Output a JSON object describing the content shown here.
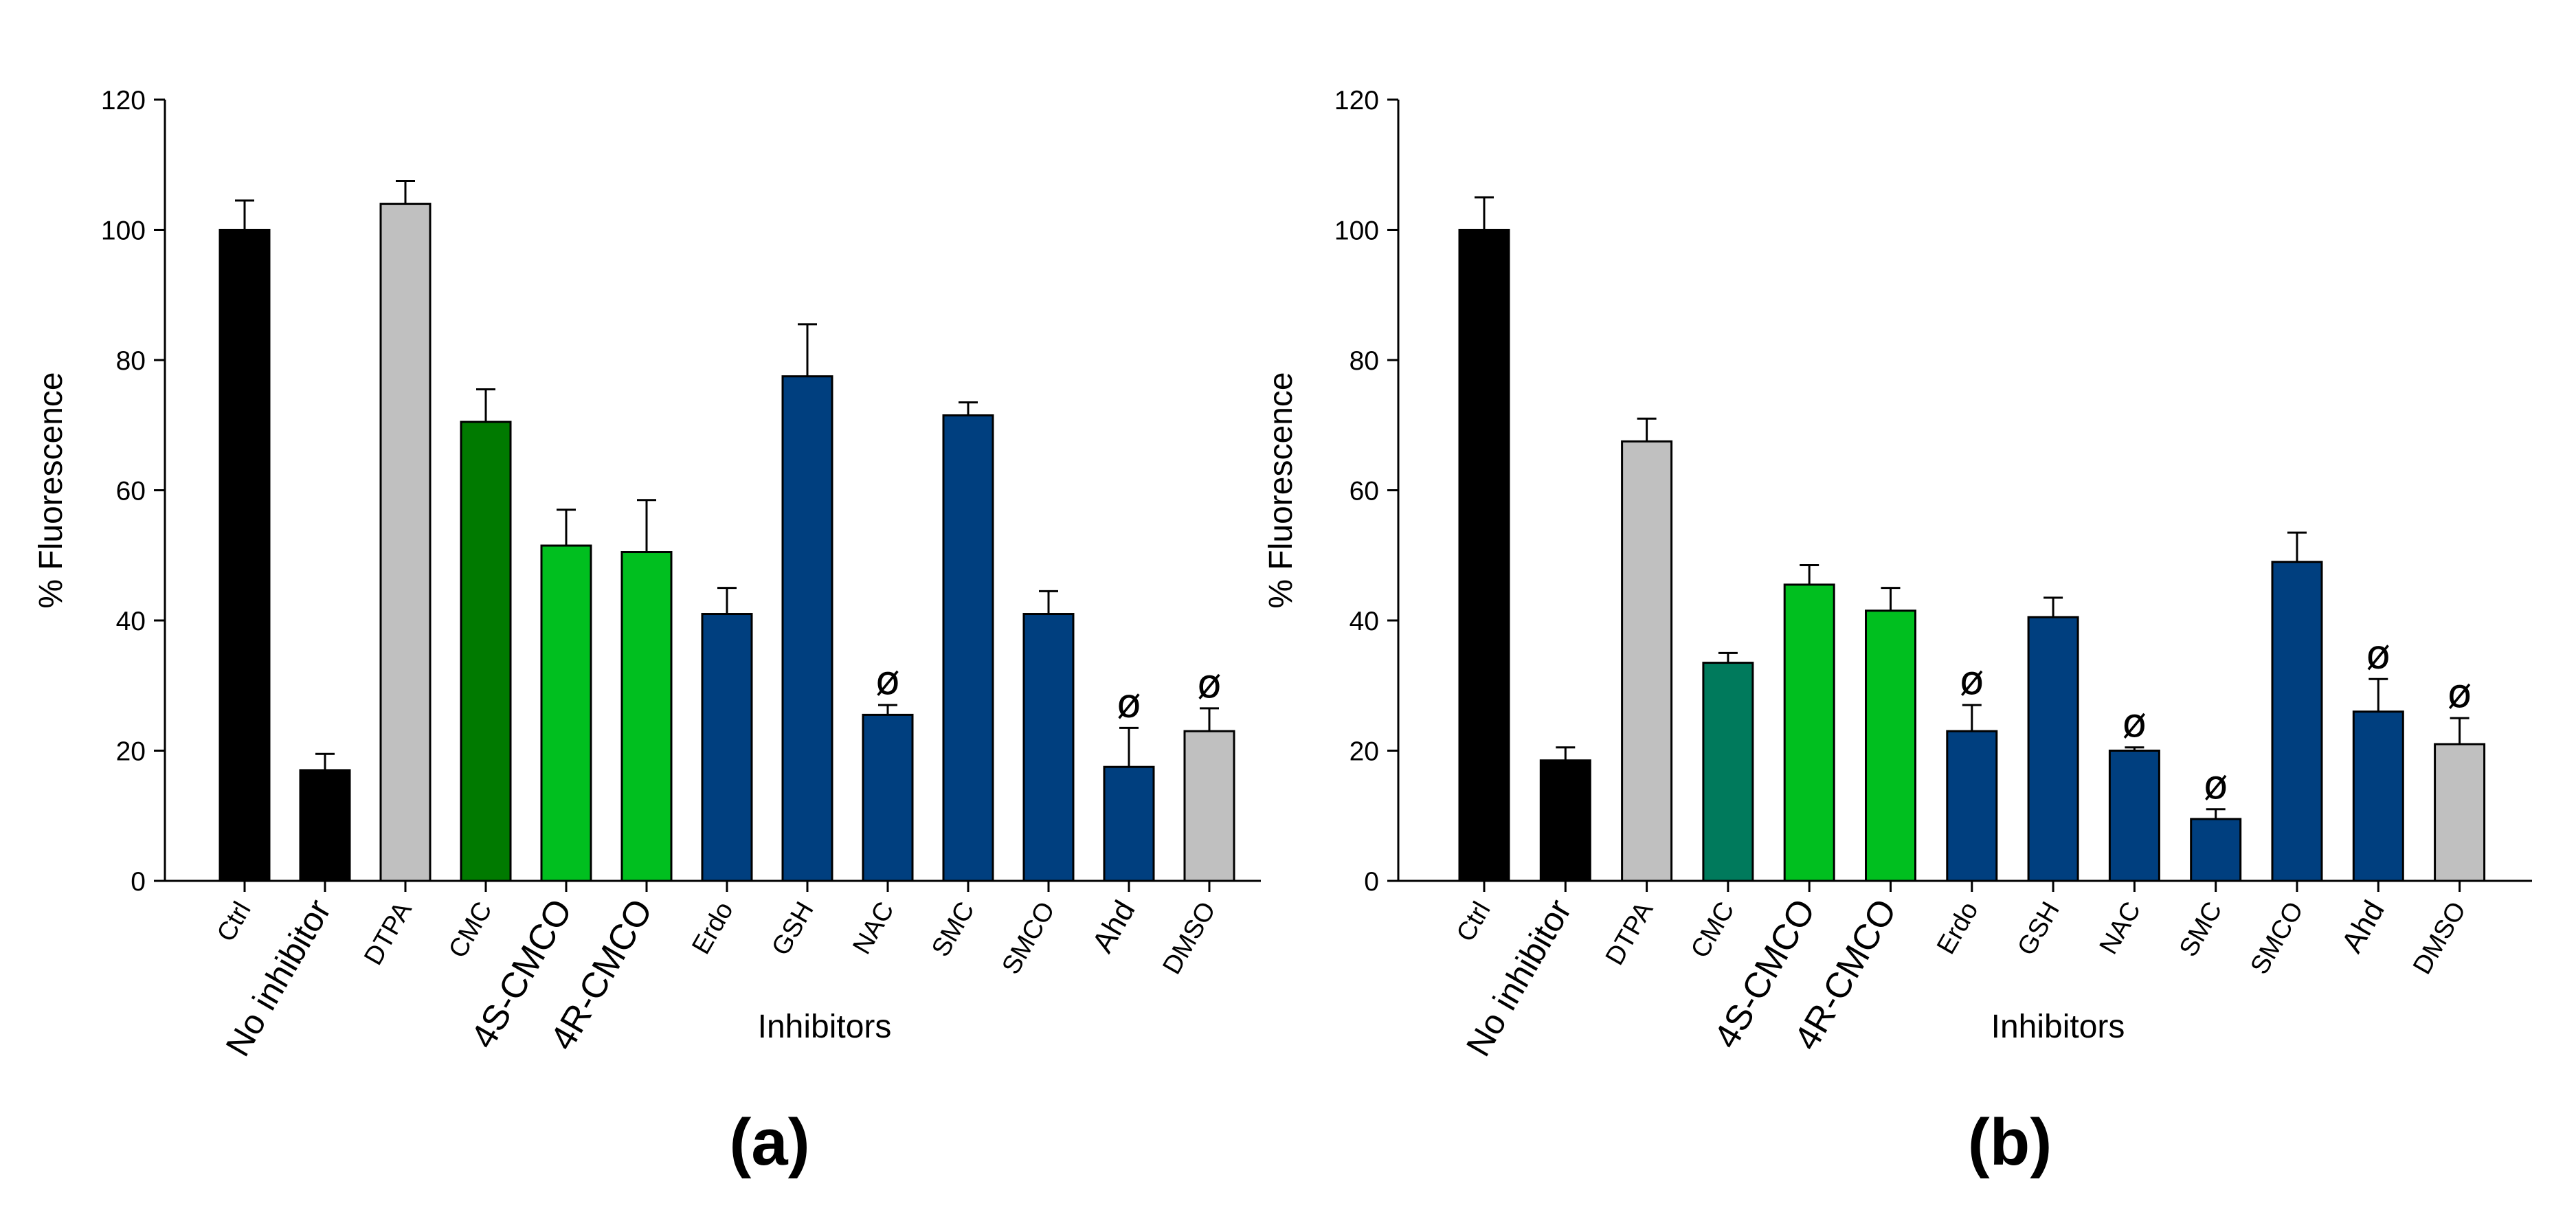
{
  "colors": {
    "black": "#000000",
    "grey": "#c0c0c0",
    "dark_green": "#007a00",
    "bright_green": "#00bf1f",
    "teal_green": "#007a5c",
    "navy": "#003f7f"
  },
  "chart_data": [
    {
      "type": "bar",
      "panel_label": "(a)",
      "xlabel": "Inhibitors",
      "ylabel": "% Fluorescence",
      "ylim": [
        0,
        120
      ],
      "yticks": [
        0,
        20,
        40,
        60,
        80,
        100,
        120
      ],
      "ytick_labels": [
        "0",
        "20",
        "40",
        "60",
        "80",
        "100",
        "120"
      ],
      "categories": [
        "Ctrl",
        "No inhibitor",
        "DTPA",
        "CMC",
        "4S-CMCO",
        "4R-CMCO",
        "Erdo",
        "GSH",
        "NAC",
        "SMC",
        "SMCO",
        "Ahd",
        "DMSO"
      ],
      "values": [
        100,
        17,
        104,
        70.5,
        51.5,
        50.5,
        41,
        77.5,
        25.5,
        71.5,
        41,
        17.5,
        23
      ],
      "errors": [
        4.5,
        2.5,
        3.5,
        5,
        5.5,
        8,
        4,
        8,
        1.5,
        2,
        3.5,
        6,
        3.5
      ],
      "bar_colors": [
        "#000000",
        "#000000",
        "#c0c0c0",
        "#007a00",
        "#00bf1f",
        "#00bf1f",
        "#003f7f",
        "#003f7f",
        "#003f7f",
        "#003f7f",
        "#003f7f",
        "#003f7f",
        "#c0c0c0"
      ],
      "significance_symbol": "ø",
      "significant": [
        false,
        false,
        false,
        false,
        false,
        false,
        false,
        false,
        true,
        false,
        false,
        true,
        true
      ]
    },
    {
      "type": "bar",
      "panel_label": "(b)",
      "xlabel": "Inhibitors",
      "ylabel": "% Fluorescence",
      "ylim": [
        0,
        120
      ],
      "yticks": [
        0,
        20,
        40,
        60,
        80,
        100,
        120
      ],
      "ytick_labels": [
        "0",
        "20",
        "40",
        "60",
        "80",
        "100",
        "120"
      ],
      "categories": [
        "Ctrl",
        "No inhibitor",
        "DTPA",
        "CMC",
        "4S-CMCO",
        "4R-CMCO",
        "Erdo",
        "GSH",
        "NAC",
        "SMC",
        "SMCO",
        "Ahd",
        "DMSO"
      ],
      "values": [
        100,
        18.5,
        67.5,
        33.5,
        45.5,
        41.5,
        23,
        40.5,
        20,
        9.5,
        49,
        26,
        21
      ],
      "errors": [
        5,
        2,
        3.5,
        1.5,
        3,
        3.5,
        4,
        3,
        0.5,
        1.5,
        4.5,
        5,
        4
      ],
      "bar_colors": [
        "#000000",
        "#000000",
        "#c0c0c0",
        "#007a5c",
        "#00bf1f",
        "#00bf1f",
        "#003f7f",
        "#003f7f",
        "#003f7f",
        "#003f7f",
        "#003f7f",
        "#003f7f",
        "#c0c0c0"
      ],
      "significance_symbol": "ø",
      "significant": [
        false,
        false,
        false,
        false,
        false,
        false,
        true,
        false,
        true,
        true,
        false,
        true,
        true
      ]
    }
  ]
}
